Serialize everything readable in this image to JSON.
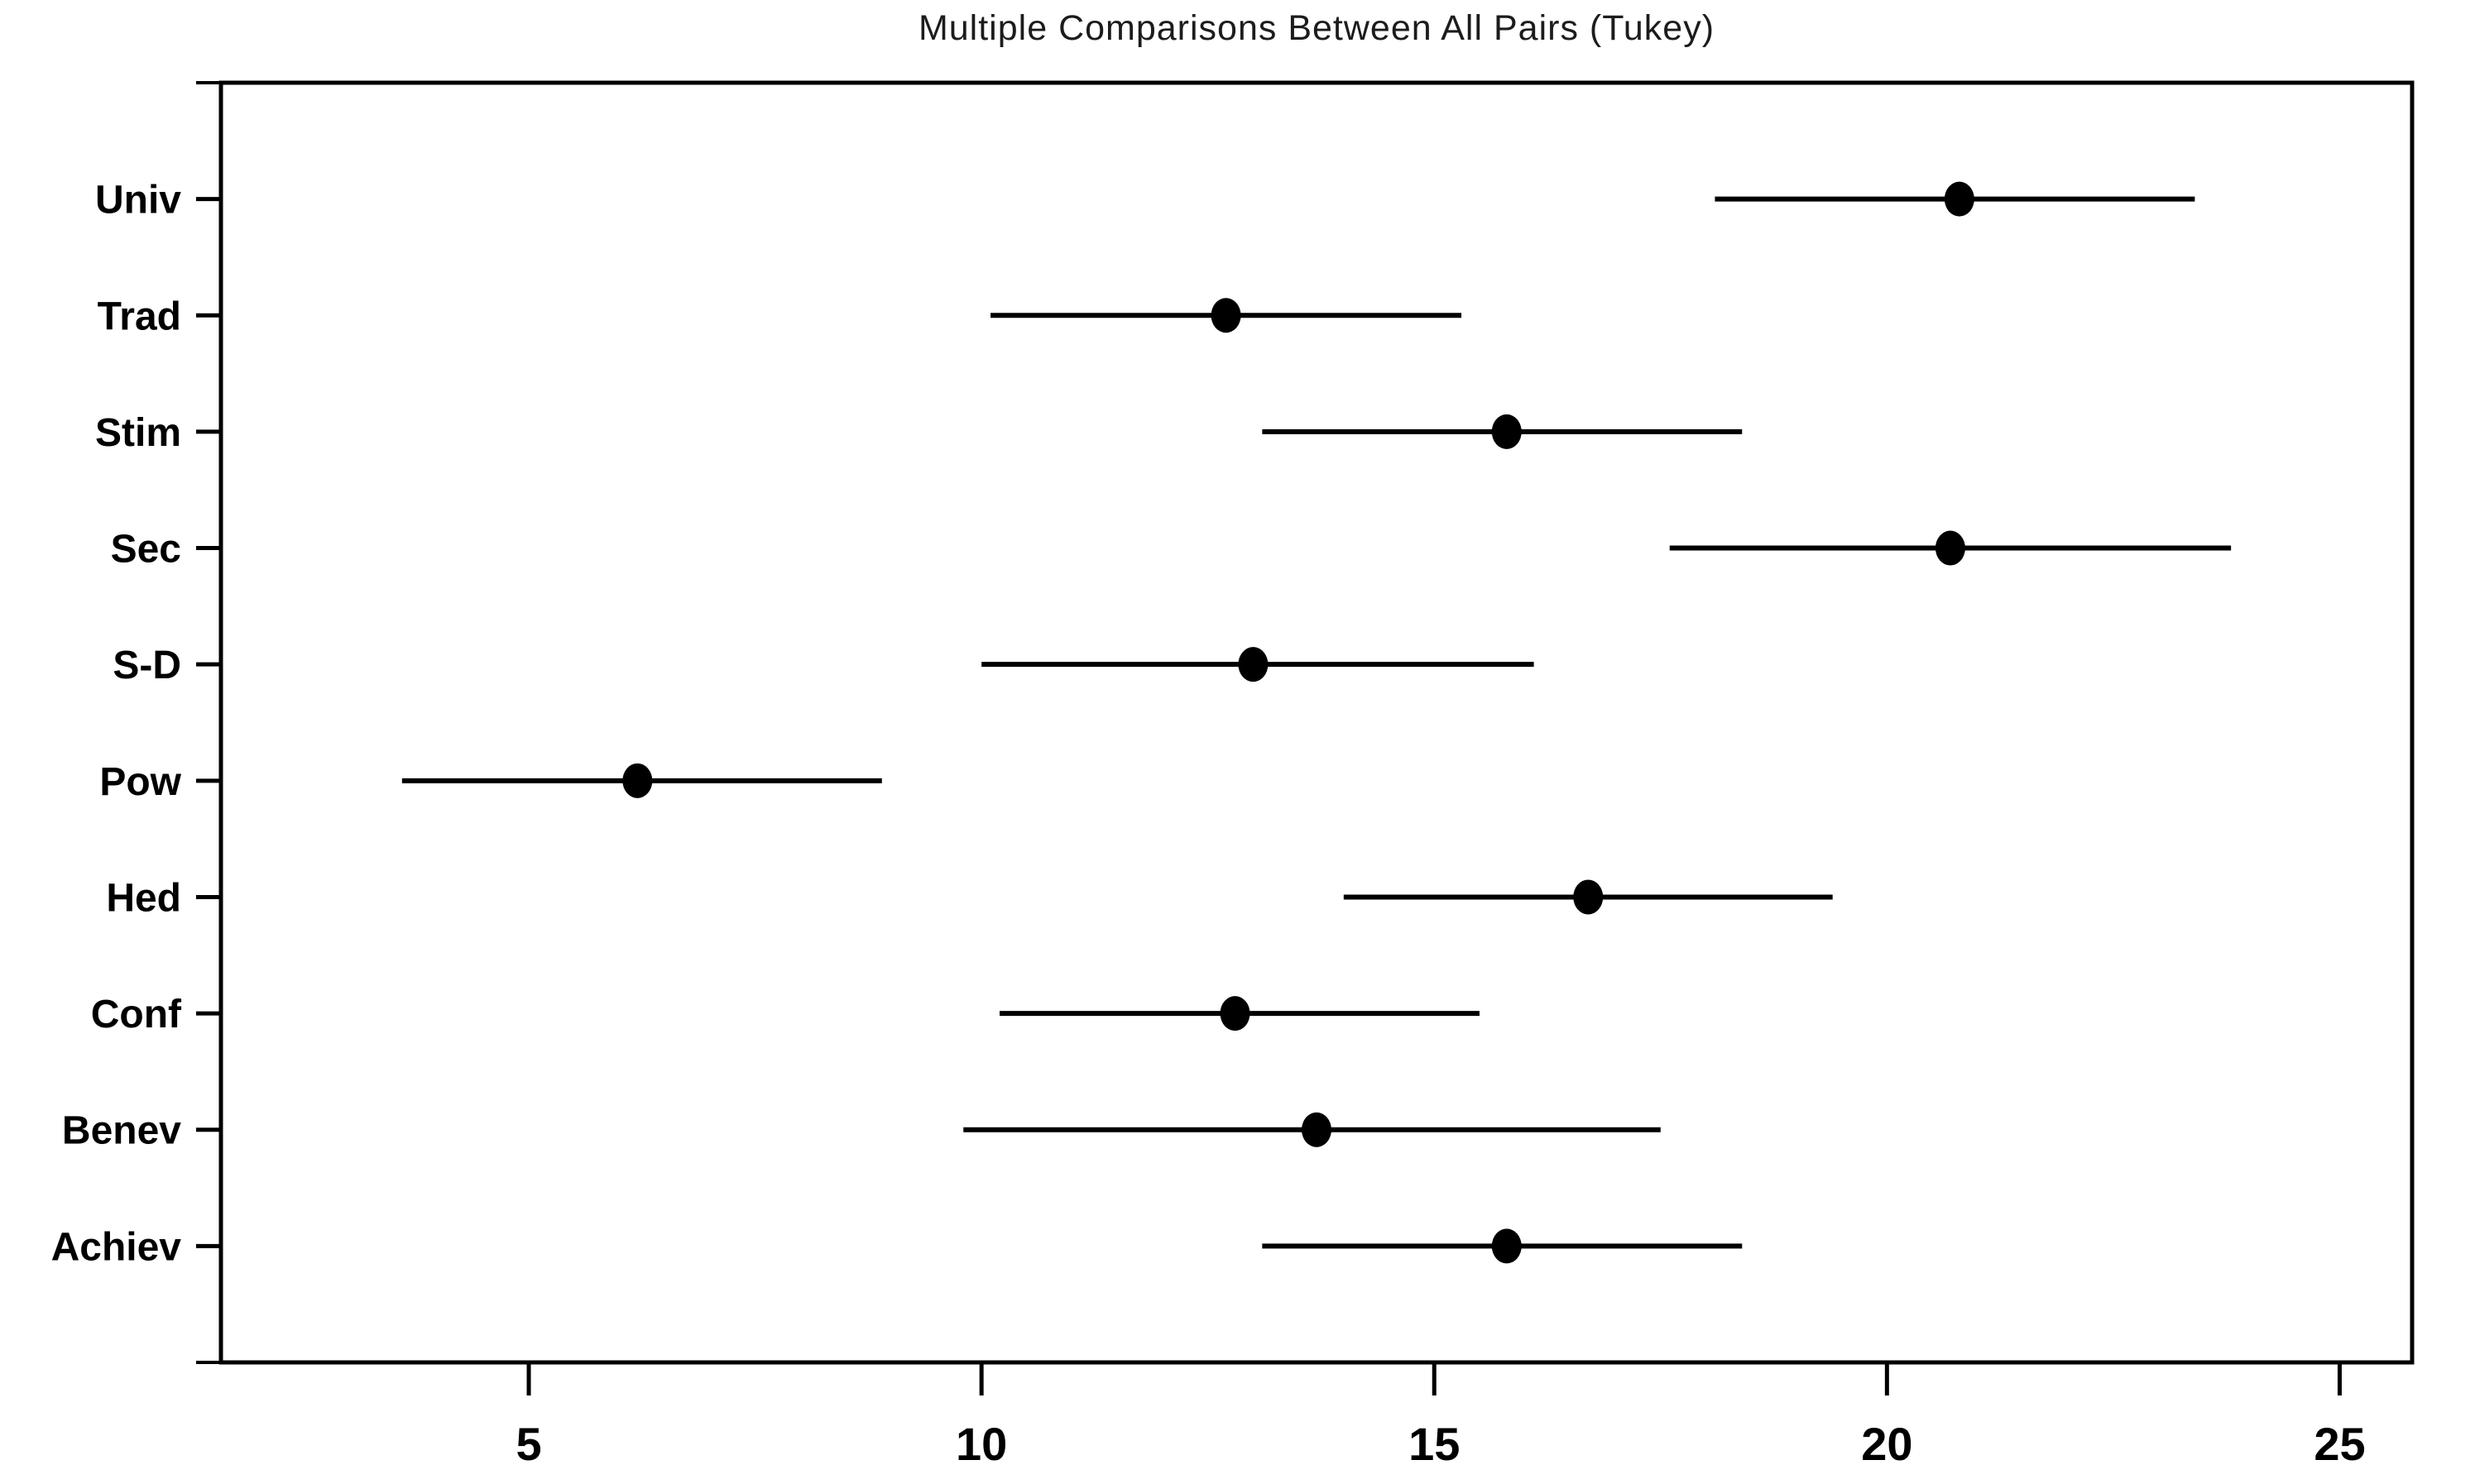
{
  "chart_data": {
    "type": "dot-interval",
    "title": "Multiple Comparisons Between All Pairs (Tukey)",
    "orientation": "horizontal",
    "xlabel": "",
    "ylabel": "",
    "grid": "off",
    "legend": "none",
    "xlim": [
      1.6,
      25.8
    ],
    "x_ticks": [
      5,
      10,
      15,
      20,
      25
    ],
    "categories": [
      "Univ",
      "Trad",
      "Stim",
      "Sec",
      "S-D",
      "Pow",
      "Hed",
      "Conf",
      "Benev",
      "Achiev"
    ],
    "intervals": [
      {
        "label": "Univ",
        "lower": 18.1,
        "center": 20.8,
        "upper": 23.4
      },
      {
        "label": "Trad",
        "lower": 10.1,
        "center": 12.7,
        "upper": 15.3
      },
      {
        "label": "Stim",
        "lower": 13.1,
        "center": 15.8,
        "upper": 18.4
      },
      {
        "label": "Sec",
        "lower": 17.6,
        "center": 20.7,
        "upper": 23.8
      },
      {
        "label": "S-D",
        "lower": 10.0,
        "center": 13.0,
        "upper": 16.1
      },
      {
        "label": "Pow",
        "lower": 3.6,
        "center": 6.2,
        "upper": 8.9
      },
      {
        "label": "Hed",
        "lower": 14.0,
        "center": 16.7,
        "upper": 19.4
      },
      {
        "label": "Conf",
        "lower": 10.2,
        "center": 12.8,
        "upper": 15.5
      },
      {
        "label": "Benev",
        "lower": 9.8,
        "center": 13.7,
        "upper": 17.5
      },
      {
        "label": "Achiev",
        "lower": 13.1,
        "center": 15.8,
        "upper": 18.4
      }
    ],
    "colors": {
      "foreground": "#000000",
      "background": "#ffffff",
      "title_text": "#1c1c1c"
    }
  }
}
